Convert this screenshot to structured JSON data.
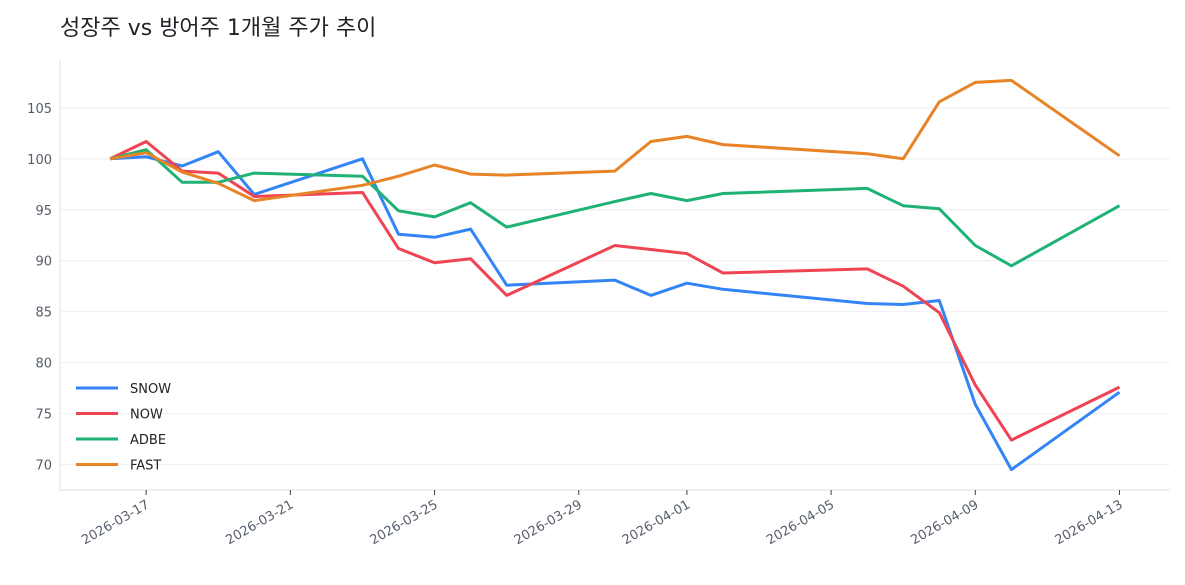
{
  "chart_data": {
    "type": "line",
    "title": "성장주 vs 방어주 1개월 주가 추이",
    "xlabel": "",
    "ylabel": "",
    "x": [
      "2026-03-16",
      "2026-03-17",
      "2026-03-18",
      "2026-03-19",
      "2026-03-20",
      "2026-03-23",
      "2026-03-24",
      "2026-03-25",
      "2026-03-26",
      "2026-03-27",
      "2026-03-30",
      "2026-03-31",
      "2026-04-01",
      "2026-04-02",
      "2026-04-06",
      "2026-04-07",
      "2026-04-08",
      "2026-04-09",
      "2026-04-10",
      "2026-04-13"
    ],
    "xticks": [
      "2026-03-17",
      "2026-03-21",
      "2026-03-25",
      "2026-03-29",
      "2026-04-01",
      "2026-04-05",
      "2026-04-09",
      "2026-04-13"
    ],
    "xlim": [
      "2026-03-14",
      "2026-04-14"
    ],
    "yticks": [
      70,
      75,
      80,
      85,
      90,
      95,
      100,
      105
    ],
    "ylim": [
      67.5,
      109.7
    ],
    "grid": "horizontal",
    "legend_position": "lower-left",
    "series": [
      {
        "name": "SNOW",
        "color": "#3385f5",
        "values": [
          100,
          100.2,
          99.3,
          100.7,
          96.5,
          100,
          92.6,
          92.3,
          93.1,
          87.6,
          88.1,
          86.6,
          87.8,
          87.2,
          85.8,
          85.7,
          86.1,
          75.9,
          69.5,
          77.1
        ]
      },
      {
        "name": "NOW",
        "color": "#ef4452",
        "values": [
          100,
          101.7,
          98.8,
          98.6,
          96.3,
          96.7,
          91.2,
          89.8,
          90.2,
          86.6,
          91.5,
          91.1,
          90.7,
          88.8,
          89.2,
          87.5,
          84.9,
          77.8,
          72.4,
          77.6
        ]
      },
      {
        "name": "ADBE",
        "color": "#1fb274",
        "values": [
          100,
          100.9,
          97.7,
          97.7,
          98.6,
          98.3,
          94.9,
          94.3,
          95.7,
          93.3,
          95.8,
          96.6,
          95.9,
          96.6,
          97.1,
          95.4,
          95.1,
          91.5,
          89.5,
          95.4
        ]
      },
      {
        "name": "FAST",
        "color": "#e88428",
        "values": [
          100,
          100.6,
          98.7,
          97.6,
          95.9,
          97.4,
          98.3,
          99.4,
          98.5,
          98.4,
          98.8,
          101.7,
          102.2,
          101.4,
          100.5,
          100,
          105.6,
          107.5,
          107.7,
          100.3
        ]
      }
    ]
  }
}
